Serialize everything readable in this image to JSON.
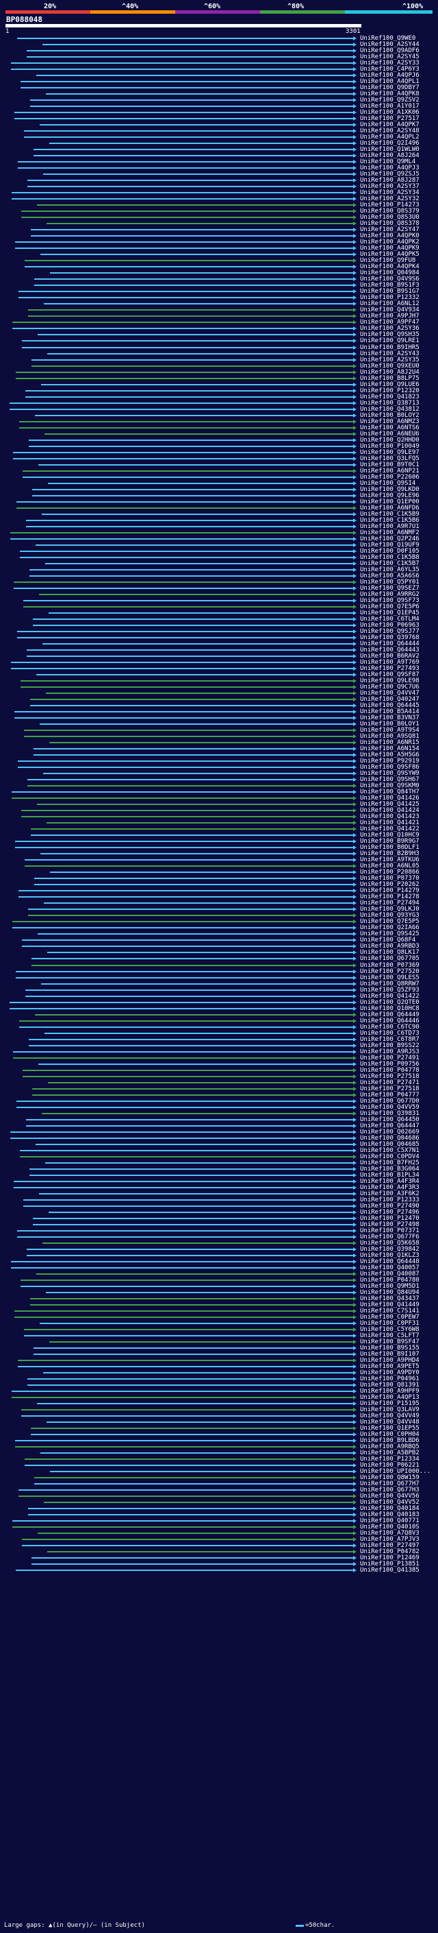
{
  "legend": {
    "labels": [
      "20%",
      "^40%",
      "^60%",
      "^80%",
      "^100%"
    ],
    "band_colors": [
      "#e53935",
      "#fb8c00",
      "#8e24aa",
      "#43a047",
      "#26c6da"
    ]
  },
  "query": {
    "title": "BP088048",
    "start": "1",
    "end": "3301"
  },
  "colors": {
    "background": "#0b0b3c",
    "match_high": "#4fc3f7",
    "match_mid": "#43a047",
    "match_low": "#2e7d32",
    "label": "#ffffff"
  },
  "hits": [
    {
      "id": "UniRef100_Q9WE0",
      "color": "cyan"
    },
    {
      "id": "UniRef100_A2SY44",
      "color": "cyan"
    },
    {
      "id": "UniRef100_Q9ADF6",
      "color": "cyan"
    },
    {
      "id": "UniRef100_A2SY45",
      "color": "cyan"
    },
    {
      "id": "UniRef100_A2SY33",
      "color": "cyan"
    },
    {
      "id": "UniRef100_C4P6Y3",
      "color": "cyan"
    },
    {
      "id": "UniRef100_A4QPJ6",
      "color": "cyan"
    },
    {
      "id": "UniRef100_A4QPL1",
      "color": "cyan"
    },
    {
      "id": "UniRef100_Q9DBY7",
      "color": "cyan"
    },
    {
      "id": "UniRef100_A4QPK8",
      "color": "cyan"
    },
    {
      "id": "UniRef100_Q9ZSV2",
      "color": "cyan"
    },
    {
      "id": "UniRef100_A1Y017",
      "color": "cyan"
    },
    {
      "id": "UniRef100_A1XK06",
      "color": "cyan"
    },
    {
      "id": "UniRef100_P27517",
      "color": "cyan"
    },
    {
      "id": "UniRef100_A4QPK7",
      "color": "cyan"
    },
    {
      "id": "UniRef100_A2SY48",
      "color": "cyan"
    },
    {
      "id": "UniRef100_A4QPL2",
      "color": "cyan"
    },
    {
      "id": "UniRef100_Q2I496",
      "color": "cyan"
    },
    {
      "id": "UniRef100_Q1WLW0",
      "color": "cyan"
    },
    {
      "id": "UniRef100_A8J264",
      "color": "cyan"
    },
    {
      "id": "UniRef100_Q9ML4",
      "color": "cyan"
    },
    {
      "id": "UniRef100_A4QPJ3",
      "color": "cyan"
    },
    {
      "id": "UniRef100_Q9ZSJ5",
      "color": "cyan"
    },
    {
      "id": "UniRef100_A8J287",
      "color": "cyan"
    },
    {
      "id": "UniRef100_A2SY37",
      "color": "cyan"
    },
    {
      "id": "UniRef100_A2SY34",
      "color": "cyan"
    },
    {
      "id": "UniRef100_A2SY32",
      "color": "cyan"
    },
    {
      "id": "UniRef100_P14273",
      "color": "green"
    },
    {
      "id": "UniRef100_Q8S379",
      "color": "green"
    },
    {
      "id": "UniRef100_Q8S3U0",
      "color": "green"
    },
    {
      "id": "UniRef100_Q8S378",
      "color": "green"
    },
    {
      "id": "UniRef100_A2SY47",
      "color": "cyan"
    },
    {
      "id": "UniRef100_A4QPK0",
      "color": "cyan"
    },
    {
      "id": "UniRef100_A4QPK2",
      "color": "cyan"
    },
    {
      "id": "UniRef100_A4QPK9",
      "color": "cyan"
    },
    {
      "id": "UniRef100_A4QPK5",
      "color": "cyan"
    },
    {
      "id": "UniRef100_Q9FU8",
      "color": "green"
    },
    {
      "id": "UniRef100_A4QPK4",
      "color": "cyan"
    },
    {
      "id": "UniRef100_Q04984",
      "color": "cyan"
    },
    {
      "id": "UniRef100_Q4V9S6",
      "color": "cyan"
    },
    {
      "id": "UniRef100_B9S1F3",
      "color": "cyan"
    },
    {
      "id": "UniRef100_B9S1G7",
      "color": "cyan"
    },
    {
      "id": "UniRef100_P12332",
      "color": "cyan"
    },
    {
      "id": "UniRef100_A6NL12",
      "color": "cyan"
    },
    {
      "id": "UniRef100_Q4V934",
      "color": "green"
    },
    {
      "id": "UniRef100_A9PJH7",
      "color": "green"
    },
    {
      "id": "UniRef100_A9PF47",
      "color": "green"
    },
    {
      "id": "UniRef100_A2SY36",
      "color": "cyan"
    },
    {
      "id": "UniRef100_Q9SH35",
      "color": "cyan"
    },
    {
      "id": "UniRef100_Q9LRE1",
      "color": "cyan"
    },
    {
      "id": "UniRef100_B9IHR5",
      "color": "cyan"
    },
    {
      "id": "UniRef100_A2SY43",
      "color": "cyan"
    },
    {
      "id": "UniRef100_A2SY35",
      "color": "cyan"
    },
    {
      "id": "UniRef100_Q9XEU0",
      "color": "green"
    },
    {
      "id": "UniRef100_A8J2U4",
      "color": "green"
    },
    {
      "id": "UniRef100_B8LP75",
      "color": "green"
    },
    {
      "id": "UniRef100_Q9LUE6",
      "color": "cyan"
    },
    {
      "id": "UniRef100_P12320",
      "color": "cyan"
    },
    {
      "id": "UniRef100_Q41823",
      "color": "cyan"
    },
    {
      "id": "UniRef100_Q38713",
      "color": "cyan"
    },
    {
      "id": "UniRef100_Q43812",
      "color": "cyan"
    },
    {
      "id": "UniRef100_B0LOY2",
      "color": "cyan"
    },
    {
      "id": "UniRef100_A6NMZ3",
      "color": "green"
    },
    {
      "id": "UniRef100_A6NTS6",
      "color": "green"
    },
    {
      "id": "UniRef100_A6NEU6",
      "color": "green"
    },
    {
      "id": "UniRef100_Q2HHD0",
      "color": "cyan"
    },
    {
      "id": "UniRef100_P10049",
      "color": "cyan"
    },
    {
      "id": "UniRef100_Q9LE97",
      "color": "cyan"
    },
    {
      "id": "UniRef100_Q3LFQ5",
      "color": "cyan"
    },
    {
      "id": "UniRef100_B9T0C1",
      "color": "cyan"
    },
    {
      "id": "UniRef100_A6NP21",
      "color": "green"
    },
    {
      "id": "UniRef100_P22606",
      "color": "cyan"
    },
    {
      "id": "UniRef100_Q9SI4",
      "color": "cyan"
    },
    {
      "id": "UniRef100_Q9LKD0",
      "color": "cyan"
    },
    {
      "id": "UniRef100_Q9LE96",
      "color": "cyan"
    },
    {
      "id": "UniRef100_Q1EP00",
      "color": "cyan"
    },
    {
      "id": "UniRef100_A6NFD6",
      "color": "green"
    },
    {
      "id": "UniRef100_C1K5B9",
      "color": "cyan"
    },
    {
      "id": "UniRef100_C1K5B6",
      "color": "cyan"
    },
    {
      "id": "UniRef100_A9R7U1",
      "color": "cyan"
    },
    {
      "id": "UniRef100_A6NMF2",
      "color": "green"
    },
    {
      "id": "UniRef100_Q2P246",
      "color": "cyan"
    },
    {
      "id": "UniRef100_Q19UF9",
      "color": "cyan"
    },
    {
      "id": "UniRef100_D0F105",
      "color": "cyan"
    },
    {
      "id": "UniRef100_C1K5B8",
      "color": "cyan"
    },
    {
      "id": "UniRef100_C1K5B7",
      "color": "cyan"
    },
    {
      "id": "UniRef100_A6YL35",
      "color": "cyan"
    },
    {
      "id": "UniRef100_A5A6S6",
      "color": "cyan"
    },
    {
      "id": "UniRef100_Q5PY01",
      "color": "green"
    },
    {
      "id": "UniRef100_Q9SEZ7",
      "color": "cyan"
    },
    {
      "id": "UniRef100_A9RRG2",
      "color": "green"
    },
    {
      "id": "UniRef100_Q9SF73",
      "color": "cyan"
    },
    {
      "id": "UniRef100_Q7E5P6",
      "color": "green"
    },
    {
      "id": "UniRef100_Q1EP45",
      "color": "cyan"
    },
    {
      "id": "UniRef100_C6TLM4",
      "color": "cyan"
    },
    {
      "id": "UniRef100_P06963",
      "color": "cyan"
    },
    {
      "id": "UniRef100_Q9SJ77",
      "color": "cyan"
    },
    {
      "id": "UniRef100_Q39768",
      "color": "cyan"
    },
    {
      "id": "UniRef100_Q64444",
      "color": "cyan"
    },
    {
      "id": "UniRef100_Q64443",
      "color": "cyan"
    },
    {
      "id": "UniRef100_B6RAV2",
      "color": "cyan"
    },
    {
      "id": "UniRef100_A9T769",
      "color": "cyan"
    },
    {
      "id": "UniRef100_P27493",
      "color": "cyan"
    },
    {
      "id": "UniRef100_Q9SF87",
      "color": "cyan"
    },
    {
      "id": "UniRef100_Q9LE98",
      "color": "green"
    },
    {
      "id": "UniRef100_Q9C7U6",
      "color": "green"
    },
    {
      "id": "UniRef100_Q4VV47",
      "color": "green"
    },
    {
      "id": "UniRef100_Q40247",
      "color": "green"
    },
    {
      "id": "UniRef100_Q64445",
      "color": "cyan"
    },
    {
      "id": "UniRef100_B5A414",
      "color": "cyan"
    },
    {
      "id": "UniRef100_B3VN37",
      "color": "cyan"
    },
    {
      "id": "UniRef100_B0LOY1",
      "color": "cyan"
    },
    {
      "id": "UniRef100_A9T9S4",
      "color": "green"
    },
    {
      "id": "UniRef100_A9SQ81",
      "color": "green"
    },
    {
      "id": "UniRef100_A6NR15",
      "color": "green"
    },
    {
      "id": "UniRef100_A6N154",
      "color": "cyan"
    },
    {
      "id": "UniRef100_A5H5G6",
      "color": "cyan"
    },
    {
      "id": "UniRef100_P92919",
      "color": "cyan"
    },
    {
      "id": "UniRef100_Q9SF86",
      "color": "cyan"
    },
    {
      "id": "UniRef100_Q9SYW9",
      "color": "cyan"
    },
    {
      "id": "UniRef100_Q9SH67",
      "color": "cyan"
    },
    {
      "id": "UniRef100_Q9SKM0",
      "color": "green"
    },
    {
      "id": "UniRef100_Q84TH7",
      "color": "cyan"
    },
    {
      "id": "UniRef100_Q41426",
      "color": "green"
    },
    {
      "id": "UniRef100_Q41425",
      "color": "green"
    },
    {
      "id": "UniRef100_Q41424",
      "color": "green"
    },
    {
      "id": "UniRef100_Q41423",
      "color": "green"
    },
    {
      "id": "UniRef100_Q41421",
      "color": "green"
    },
    {
      "id": "UniRef100_Q41422",
      "color": "green"
    },
    {
      "id": "UniRef100_Q10HC9",
      "color": "cyan"
    },
    {
      "id": "UniRef100_B9R9G7",
      "color": "cyan"
    },
    {
      "id": "UniRef100_B0DLF1",
      "color": "cyan"
    },
    {
      "id": "UniRef100_B2B9H3",
      "color": "cyan"
    },
    {
      "id": "UniRef100_A9TKU6",
      "color": "cyan"
    },
    {
      "id": "UniRef100_A6NL05",
      "color": "green"
    },
    {
      "id": "UniRef100_P20866",
      "color": "cyan"
    },
    {
      "id": "UniRef100_P07370",
      "color": "cyan"
    },
    {
      "id": "UniRef100_P20262",
      "color": "cyan"
    },
    {
      "id": "UniRef100_P14279",
      "color": "cyan"
    },
    {
      "id": "UniRef100_P14278",
      "color": "cyan"
    },
    {
      "id": "UniRef100_P27494",
      "color": "cyan"
    },
    {
      "id": "UniRef100_Q9LKJ0",
      "color": "cyan"
    },
    {
      "id": "UniRef100_Q93YG3",
      "color": "green"
    },
    {
      "id": "UniRef100_Q7E5P5",
      "color": "green"
    },
    {
      "id": "UniRef100_Q2IA66",
      "color": "cyan"
    },
    {
      "id": "UniRef100_Q9S425",
      "color": "cyan"
    },
    {
      "id": "UniRef100_Q68F4",
      "color": "cyan"
    },
    {
      "id": "UniRef100_A9RBD3",
      "color": "cyan"
    },
    {
      "id": "UniRef100_Q8LK17",
      "color": "cyan"
    },
    {
      "id": "UniRef100_Q67705",
      "color": "cyan"
    },
    {
      "id": "UniRef100_P07369",
      "color": "green"
    },
    {
      "id": "UniRef100_P27520",
      "color": "cyan"
    },
    {
      "id": "UniRef100_Q9LES5",
      "color": "cyan"
    },
    {
      "id": "UniRef100_Q8RRW7",
      "color": "cyan"
    },
    {
      "id": "UniRef100_Q5ZF93",
      "color": "cyan"
    },
    {
      "id": "UniRef100_Q41422",
      "color": "cyan"
    },
    {
      "id": "UniRef100_Q2QTE0",
      "color": "cyan"
    },
    {
      "id": "UniRef100_Q10HC8",
      "color": "cyan"
    },
    {
      "id": "UniRef100_Q64449",
      "color": "green"
    },
    {
      "id": "UniRef100_Q64446",
      "color": "green"
    },
    {
      "id": "UniRef100_C6TC90",
      "color": "cyan"
    },
    {
      "id": "UniRef100_C6TD73",
      "color": "cyan"
    },
    {
      "id": "UniRef100_C6T8R7",
      "color": "cyan"
    },
    {
      "id": "UniRef100_B9SS22",
      "color": "cyan"
    },
    {
      "id": "UniRef100_A9RJS3",
      "color": "cyan"
    },
    {
      "id": "UniRef100_P27491",
      "color": "green"
    },
    {
      "id": "UniRef100_P09756",
      "color": "cyan"
    },
    {
      "id": "UniRef100_P04778",
      "color": "green"
    },
    {
      "id": "UniRef100_P27518",
      "color": "green"
    },
    {
      "id": "UniRef100_P27471",
      "color": "green"
    },
    {
      "id": "UniRef100_P27518",
      "color": "green"
    },
    {
      "id": "UniRef100_P04777",
      "color": "green"
    },
    {
      "id": "UniRef100_Q677D0",
      "color": "cyan"
    },
    {
      "id": "UniRef100_Q4VV59",
      "color": "cyan"
    },
    {
      "id": "UniRef100_Q39831",
      "color": "green"
    },
    {
      "id": "UniRef100_Q64450",
      "color": "cyan"
    },
    {
      "id": "UniRef100_Q64447",
      "color": "cyan"
    },
    {
      "id": "UniRef100_Q02669",
      "color": "cyan"
    },
    {
      "id": "UniRef100_Q04686",
      "color": "cyan"
    },
    {
      "id": "UniRef100_Q04685",
      "color": "cyan"
    },
    {
      "id": "UniRef100_C5X7N1",
      "color": "cyan"
    },
    {
      "id": "UniRef100_C0PDV4",
      "color": "green"
    },
    {
      "id": "UniRef100_B7FH25",
      "color": "cyan"
    },
    {
      "id": "UniRef100_B3G064",
      "color": "cyan"
    },
    {
      "id": "UniRef100_B1PL34",
      "color": "cyan"
    },
    {
      "id": "UniRef100_A4F3R4",
      "color": "cyan"
    },
    {
      "id": "UniRef100_A4F3R3",
      "color": "cyan"
    },
    {
      "id": "UniRef100_A3F6K2",
      "color": "cyan"
    },
    {
      "id": "UniRef100_P12333",
      "color": "cyan"
    },
    {
      "id": "UniRef100_P27490",
      "color": "cyan"
    },
    {
      "id": "UniRef100_P27496",
      "color": "cyan"
    },
    {
      "id": "UniRef100_P12470",
      "color": "cyan"
    },
    {
      "id": "UniRef100_P27498",
      "color": "cyan"
    },
    {
      "id": "UniRef100_P07371",
      "color": "cyan"
    },
    {
      "id": "UniRef100_Q677F6",
      "color": "cyan"
    },
    {
      "id": "UniRef100_Q5K658",
      "color": "green"
    },
    {
      "id": "UniRef100_Q39842",
      "color": "cyan"
    },
    {
      "id": "UniRef100_Q1KLZ3",
      "color": "cyan"
    },
    {
      "id": "UniRef100_Q64448",
      "color": "cyan"
    },
    {
      "id": "UniRef100_Q40057",
      "color": "cyan"
    },
    {
      "id": "UniRef100_Q40087",
      "color": "green"
    },
    {
      "id": "UniRef100_P04780",
      "color": "green"
    },
    {
      "id": "UniRef100_Q9M5D1",
      "color": "cyan"
    },
    {
      "id": "UniRef100_Q84U94",
      "color": "cyan"
    },
    {
      "id": "UniRef100_Q43437",
      "color": "green"
    },
    {
      "id": "UniRef100_Q41449",
      "color": "green"
    },
    {
      "id": "UniRef100_C7S141",
      "color": "green"
    },
    {
      "id": "UniRef100_C0PEW7",
      "color": "green"
    },
    {
      "id": "UniRef100_C0PF31",
      "color": "cyan"
    },
    {
      "id": "UniRef100_C5Y6W8",
      "color": "green"
    },
    {
      "id": "UniRef100_C5LFT7",
      "color": "cyan"
    },
    {
      "id": "UniRef100_B9SF47",
      "color": "green"
    },
    {
      "id": "UniRef100_B9S155",
      "color": "cyan"
    },
    {
      "id": "UniRef100_B9I107",
      "color": "cyan"
    },
    {
      "id": "UniRef100_A9PHD4",
      "color": "green"
    },
    {
      "id": "UniRef100_A9PET5",
      "color": "cyan"
    },
    {
      "id": "UniRef100_A9PDY0",
      "color": "cyan"
    },
    {
      "id": "UniRef100_P04961",
      "color": "cyan"
    },
    {
      "id": "UniRef100_Q81391",
      "color": "cyan"
    },
    {
      "id": "UniRef100_A9HPF9",
      "color": "cyan"
    },
    {
      "id": "UniRef100_A4QP13",
      "color": "green"
    },
    {
      "id": "UniRef100_P15195",
      "color": "cyan"
    },
    {
      "id": "UniRef100_Q3LAV9",
      "color": "green"
    },
    {
      "id": "UniRef100_Q4VV49",
      "color": "cyan"
    },
    {
      "id": "UniRef100_Q4VV48",
      "color": "cyan"
    },
    {
      "id": "UniRef100_Q1EP55",
      "color": "green"
    },
    {
      "id": "UniRef100_C0PH04",
      "color": "cyan"
    },
    {
      "id": "UniRef100_B9LBD6",
      "color": "cyan"
    },
    {
      "id": "UniRef100_A9RBQ5",
      "color": "green"
    },
    {
      "id": "UniRef100_A5BPB2",
      "color": "cyan"
    },
    {
      "id": "UniRef100_P12334",
      "color": "green"
    },
    {
      "id": "UniRef100_P06221",
      "color": "cyan"
    },
    {
      "id": "UniRef100_UPI000...",
      "color": "cyan"
    },
    {
      "id": "UniRef100_Q8W159",
      "color": "green"
    },
    {
      "id": "UniRef100_Q677H7",
      "color": "cyan"
    },
    {
      "id": "UniRef100_Q677H3",
      "color": "cyan"
    },
    {
      "id": "UniRef100_Q4VV56",
      "color": "green"
    },
    {
      "id": "UniRef100_Q4VV52",
      "color": "green"
    },
    {
      "id": "UniRef100_Q40184",
      "color": "cyan"
    },
    {
      "id": "UniRef100_Q40183",
      "color": "cyan"
    },
    {
      "id": "UniRef100_Q40771",
      "color": "cyan"
    },
    {
      "id": "UniRef100_Q4010S",
      "color": "green"
    },
    {
      "id": "UniRef100_A7Q8V3",
      "color": "green"
    },
    {
      "id": "UniRef100_A7PJV3",
      "color": "green"
    },
    {
      "id": "UniRef100_P27497",
      "color": "cyan"
    },
    {
      "id": "UniRef100_P04782",
      "color": "green"
    },
    {
      "id": "UniRef100_P12469",
      "color": "cyan"
    },
    {
      "id": "UniRef100_P13851",
      "color": "cyan"
    },
    {
      "id": "UniRef100_Q41385",
      "color": "cyan"
    }
  ],
  "footer": {
    "gaps_text": "Large gaps: ▲(in Query)/— (in Subject)",
    "scale_text": "=50char."
  }
}
